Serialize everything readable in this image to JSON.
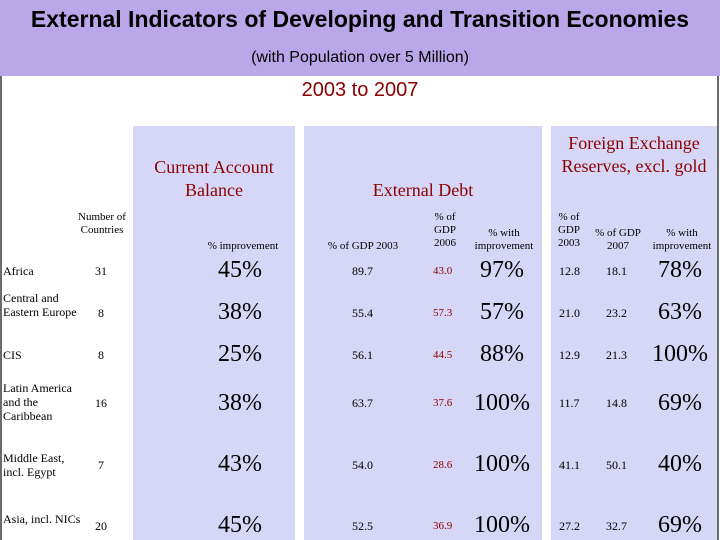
{
  "header": {
    "title": "External Indicators of Developing and Transition Economies",
    "subtitle": "(with Population over 5 Million)",
    "years": "2003 to 2007"
  },
  "groups": {
    "current_account": "Current Account Balance",
    "external_debt": "External Debt",
    "fx_reserves": "Foreign Exchange Reserves, excl. gold"
  },
  "columns": {
    "countries": "Number of Countries",
    "ca_improvement": "% improvement",
    "debt_2003": "% of GDP 2003",
    "debt_2006": "% of GDP 2006",
    "debt_improvement": "% with improvement",
    "fx_2003": "% of GDP 2003",
    "fx_2007": "% of GDP 2007",
    "fx_improvement": "% with improvement"
  },
  "rows": [
    {
      "region": "Africa",
      "countries": "31",
      "ca": "45%",
      "d2003": "89.7",
      "d2006": "43.0",
      "dimp": "97%",
      "f2003": "12.8",
      "f2007": "18.1",
      "fimp": "78%"
    },
    {
      "region": "Central and Eastern Europe",
      "countries": "8",
      "ca": "38%",
      "d2003": "55.4",
      "d2006": "57.3",
      "dimp": "57%",
      "f2003": "21.0",
      "f2007": "23.2",
      "fimp": "63%"
    },
    {
      "region": "CIS",
      "countries": "8",
      "ca": "25%",
      "d2003": "56.1",
      "d2006": "44.5",
      "dimp": "88%",
      "f2003": "12.9",
      "f2007": "21.3",
      "fimp": "100%"
    },
    {
      "region": "Latin America and the Caribbean",
      "countries": "16",
      "ca": "38%",
      "d2003": "63.7",
      "d2006": "37.6",
      "dimp": "100%",
      "f2003": "11.7",
      "f2007": "14.8",
      "fimp": "69%"
    },
    {
      "region": "Middle East, incl. Egypt",
      "countries": "7",
      "ca": "43%",
      "d2003": "54.0",
      "d2006": "28.6",
      "dimp": "100%",
      "f2003": "41.1",
      "f2007": "50.1",
      "fimp": "40%"
    },
    {
      "region": "Asia, incl. NICs",
      "countries": "20",
      "ca": "45%",
      "d2003": "52.5",
      "d2006": "36.9",
      "dimp": "100%",
      "f2003": "27.2",
      "f2007": "32.7",
      "fimp": "69%"
    }
  ]
}
